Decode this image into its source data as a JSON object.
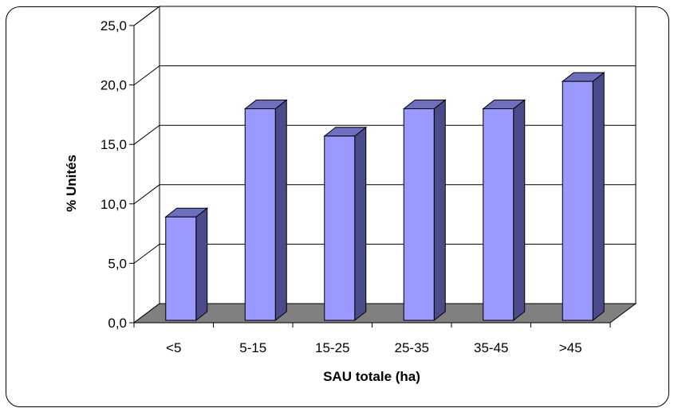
{
  "chart_data": {
    "type": "bar",
    "title": "",
    "xlabel": "SAU totale (ha)",
    "ylabel": "% Unités",
    "categories": [
      "<5",
      "5-15",
      "15-25",
      "25-35",
      "35-45",
      ">45"
    ],
    "values": [
      9.1,
      18.2,
      15.9,
      18.2,
      18.2,
      20.5
    ],
    "ylim": [
      0,
      25
    ],
    "yticks": [
      0,
      5,
      10,
      15,
      20,
      25
    ],
    "ytick_labels": [
      "0,0",
      "5,0",
      "10,0",
      "15,0",
      "20,0",
      "25,0"
    ],
    "grid": true,
    "legend": "none",
    "three_d": true,
    "colors": {
      "bar_front": "#9999ff",
      "bar_side": "#4b4b8c",
      "bar_top": "#6f6fbf",
      "floor": "#808080",
      "wall": "#ffffff",
      "grid": "#000000"
    }
  }
}
